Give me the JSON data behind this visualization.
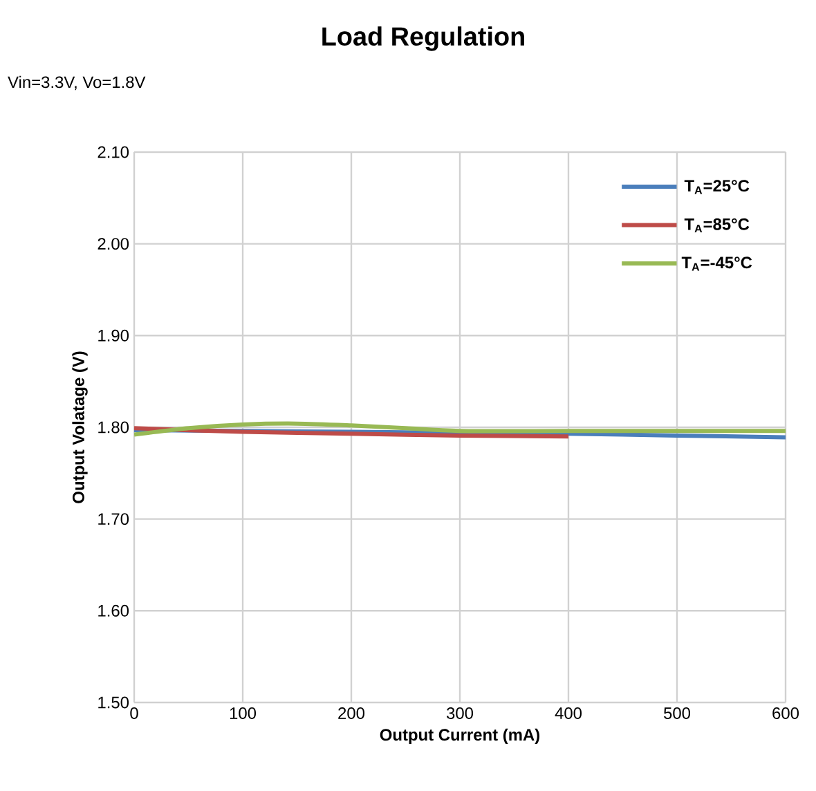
{
  "chart_data": {
    "type": "line",
    "title": "Load Regulation",
    "subtitle": "Vin=3.3V, Vo=1.8V",
    "xlabel": "Output Current (mA)",
    "ylabel": "Output Volatage (V)",
    "series": [
      {
        "name": "T$_{A}$=25°C",
        "color": "#4a7ebb",
        "x": [
          0,
          100,
          200,
          300,
          400,
          500,
          600
        ],
        "values": [
          1.797,
          1.796,
          1.795,
          1.794,
          1.793,
          1.791,
          1.789
        ]
      },
      {
        "name": "T$_{A}$=85°C",
        "color": "#be4b48",
        "x": [
          0,
          100,
          200,
          300,
          400
        ],
        "values": [
          1.799,
          1.795,
          1.793,
          1.791,
          1.79
        ]
      },
      {
        "name": "T$_{A}$=-45°C",
        "color": "#98b954",
        "x": [
          0,
          50,
          100,
          150,
          200,
          250,
          300,
          400,
          500,
          600
        ],
        "values": [
          1.792,
          1.799,
          1.803,
          1.804,
          1.802,
          1.799,
          1.796,
          1.796,
          1.796,
          1.796
        ]
      }
    ],
    "xlim": [
      0,
      600
    ],
    "xticks": [
      0,
      100,
      200,
      300,
      400,
      500,
      600
    ],
    "ylim": [
      1.5,
      2.1
    ],
    "yticks": [
      {
        "value": 1.5,
        "label": "1.50"
      },
      {
        "value": 1.6,
        "label": "1.60"
      },
      {
        "value": 1.7,
        "label": "1.70"
      },
      {
        "value": 1.8,
        "label": "1.80"
      },
      {
        "value": 1.9,
        "label": "1.90"
      },
      {
        "value": 2.0,
        "label": "2.00"
      },
      {
        "value": 2.1,
        "label": "2.10"
      }
    ],
    "grid": true,
    "legend": "top right",
    "marker": "none",
    "line_style": "solid"
  }
}
